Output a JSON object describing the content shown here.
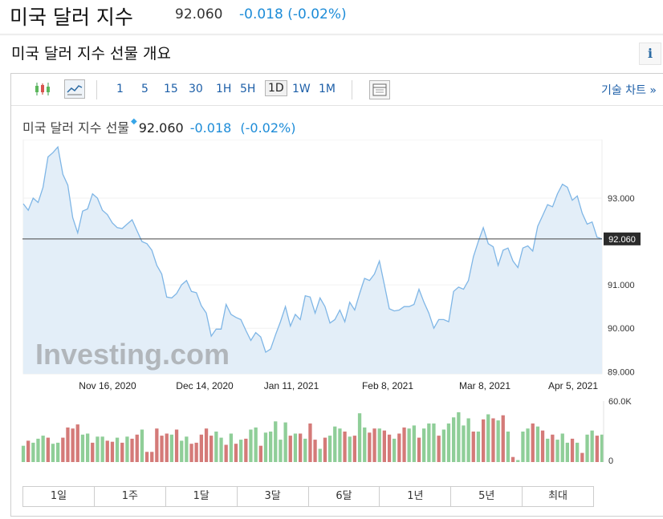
{
  "header": {
    "title": "미국 달러 지수",
    "price": "92.060",
    "change": "-0.018 (-0.02%)"
  },
  "section_title": "미국 달러 지수 선물 개요",
  "info_icon": "i",
  "toolbar": {
    "candle_icon": "candlestick-icon",
    "area_icon": "area-chart-icon",
    "intervals": [
      "1",
      "5",
      "15",
      "30",
      "1H",
      "5H",
      "1D",
      "1W",
      "1M"
    ],
    "active_interval": "1D",
    "layout_icon": "layout-icon",
    "advanced_chart": "기술 차트 »"
  },
  "chart_header": {
    "name": "미국 달러 지수 선물",
    "price": "92.060",
    "change": "-0.018",
    "change_pct": "(-0.02%)"
  },
  "watermark": "Investing.com",
  "ranges": [
    "1일",
    "1주",
    "1달",
    "3달",
    "6달",
    "1년",
    "5년",
    "최대"
  ],
  "colors": {
    "line": "#7fb6e6",
    "area": "#e3eef8",
    "up_volume": "#8fce98",
    "down_volume": "#d47a78",
    "accent": "#1d8cd8"
  },
  "chart_data": {
    "type": "area",
    "x_tick_labels": [
      "Nov 16, 2020",
      "Dec 14, 2020",
      "Jan 11, 2021",
      "Feb 8, 2021",
      "Mar 8, 2021",
      "Apr 5, 2021"
    ],
    "y_tick_labels": [
      "93.000",
      "92.060",
      "91.000",
      "90.000",
      "89.000"
    ],
    "y_ticks": [
      93.0,
      91.0,
      90.0,
      89.0
    ],
    "ylim": [
      88.95,
      94.35
    ],
    "last_value": 92.06,
    "last_value_label": "92.060",
    "values": [
      92.87,
      92.72,
      93.0,
      92.9,
      93.25,
      93.95,
      94.05,
      94.18,
      93.55,
      93.3,
      92.55,
      92.2,
      92.7,
      92.75,
      93.1,
      93.0,
      92.72,
      92.62,
      92.43,
      92.32,
      92.3,
      92.4,
      92.5,
      92.25,
      92.0,
      91.95,
      91.8,
      91.45,
      91.25,
      90.72,
      90.7,
      90.8,
      91.0,
      91.1,
      90.85,
      90.82,
      90.52,
      90.35,
      89.82,
      89.98,
      89.98,
      90.55,
      90.32,
      90.25,
      90.2,
      89.95,
      89.72,
      89.9,
      89.8,
      89.45,
      89.52,
      89.85,
      90.15,
      90.5,
      90.05,
      90.32,
      90.2,
      90.75,
      90.72,
      90.35,
      90.7,
      90.5,
      90.12,
      90.2,
      90.42,
      90.15,
      90.6,
      90.42,
      90.8,
      91.15,
      91.1,
      91.25,
      91.55,
      91.0,
      90.45,
      90.4,
      90.42,
      90.5,
      90.5,
      90.55,
      90.9,
      90.6,
      90.35,
      90.0,
      90.2,
      90.2,
      90.15,
      90.85,
      90.95,
      90.9,
      91.1,
      91.65,
      92.0,
      92.32,
      91.95,
      91.88,
      91.45,
      91.8,
      91.85,
      91.55,
      91.4,
      91.85,
      91.9,
      91.78,
      92.35,
      92.6,
      92.85,
      92.8,
      93.1,
      93.32,
      93.25,
      92.95,
      93.05,
      92.65,
      92.4,
      92.45,
      92.1,
      92.06
    ],
    "volume_ylim": [
      0,
      60000
    ],
    "volume_tick_labels": [
      "60.0K",
      "0"
    ],
    "volume": [
      16000,
      21000,
      19000,
      23000,
      26000,
      24000,
      18000,
      19000,
      24000,
      34000,
      33000,
      37000,
      27000,
      28000,
      19000,
      25000,
      25000,
      21000,
      20000,
      24000,
      19000,
      25000,
      23000,
      27000,
      32000,
      10000,
      10000,
      33000,
      26000,
      28000,
      27000,
      32000,
      21000,
      25000,
      18000,
      19000,
      27000,
      33000,
      26000,
      30000,
      24000,
      17000,
      28000,
      18000,
      22000,
      23000,
      32000,
      34000,
      16000,
      29000,
      30000,
      40000,
      22000,
      39000,
      26000,
      28000,
      28000,
      23000,
      38000,
      22000,
      13000,
      24000,
      26000,
      35000,
      33000,
      30000,
      25000,
      26000,
      48000,
      34000,
      29000,
      33000,
      33000,
      31000,
      27000,
      23000,
      28000,
      34000,
      33000,
      36000,
      24000,
      33000,
      38000,
      38000,
      26000,
      32000,
      38000,
      44000,
      49000,
      36000,
      43000,
      30000,
      30000,
      42000,
      47000,
      43000,
      41000,
      46000,
      30000,
      5000,
      2000,
      30000,
      33000,
      38000,
      35000,
      31000,
      23000,
      27000,
      22000,
      28000,
      19000,
      23000,
      19000,
      9000,
      27000,
      31000,
      26000,
      27000
    ],
    "volume_up": [
      1,
      0,
      1,
      1,
      1,
      0,
      1,
      1,
      0,
      0,
      0,
      0,
      1,
      1,
      0,
      1,
      1,
      0,
      0,
      1,
      0,
      1,
      0,
      0,
      1,
      0,
      0,
      0,
      0,
      0,
      1,
      0,
      1,
      1,
      0,
      0,
      0,
      0,
      0,
      1,
      1,
      0,
      1,
      0,
      1,
      0,
      1,
      1,
      0,
      1,
      1,
      1,
      1,
      1,
      0,
      1,
      0,
      1,
      0,
      0,
      1,
      0,
      1,
      1,
      1,
      0,
      1,
      0,
      1,
      1,
      0,
      0,
      1,
      0,
      0,
      1,
      0,
      0,
      1,
      1,
      0,
      1,
      1,
      1,
      0,
      1,
      1,
      1,
      1,
      1,
      1,
      0,
      1,
      0,
      1,
      0,
      1,
      0,
      1,
      0,
      1,
      1,
      1,
      0,
      1,
      0,
      1,
      0,
      1,
      1,
      1,
      0,
      1,
      0,
      1,
      1,
      0,
      1
    ]
  }
}
